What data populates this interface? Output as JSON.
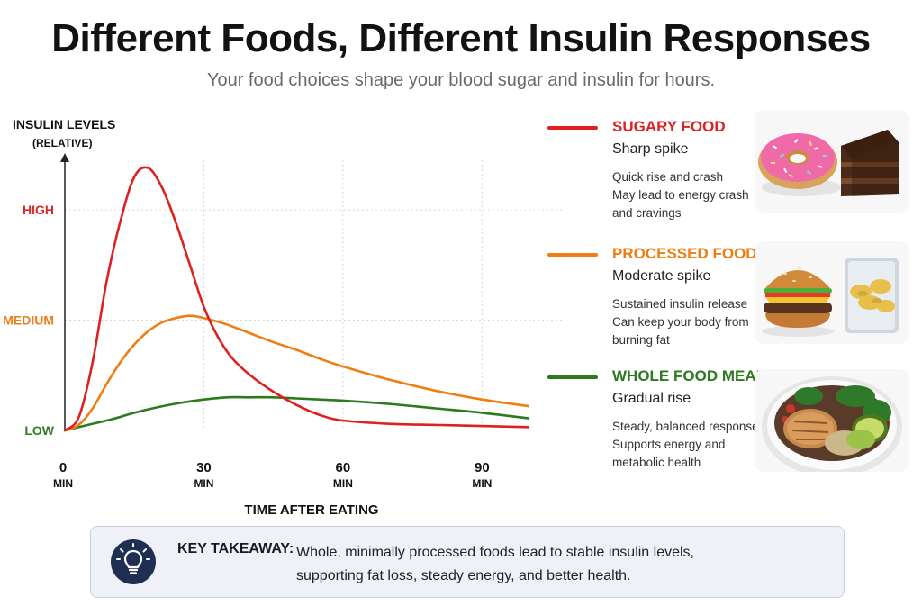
{
  "header": {
    "title": "Different Foods, Different Insulin Responses",
    "subtitle": "Your food choices shape your blood sugar and insulin for hours."
  },
  "chart_data": {
    "type": "line",
    "ylabel_lines": [
      "INSULIN LEVELS",
      "(RELATIVE)"
    ],
    "xlabel": "TIME AFTER EATING",
    "x_ticks": [
      {
        "value": 0,
        "label": "0",
        "unit": "MIN"
      },
      {
        "value": 30,
        "label": "30",
        "unit": "MIN"
      },
      {
        "value": 60,
        "label": "60",
        "unit": "MIN"
      },
      {
        "value": 90,
        "label": "90",
        "unit": "MIN"
      }
    ],
    "y_ticks": [
      {
        "value": 0,
        "label": "LOW",
        "color": "#2f7d1f"
      },
      {
        "value": 1,
        "label": "MEDIUM",
        "color": "#ee7b1a"
      },
      {
        "value": 2,
        "label": "HIGH",
        "color": "#d62a24"
      }
    ],
    "xlim": [
      0,
      108
    ],
    "ylim": [
      0,
      2.45
    ],
    "grid": true,
    "series": [
      {
        "name": "SUGARY FOOD",
        "color": "#dd2020",
        "x": [
          0,
          3,
          6,
          9,
          12,
          15,
          18,
          21,
          24,
          27,
          30,
          33,
          36,
          40,
          45,
          50,
          55,
          60,
          70,
          80,
          90,
          100
        ],
        "y": [
          0,
          0.12,
          0.62,
          1.35,
          1.9,
          2.3,
          2.38,
          2.2,
          1.88,
          1.5,
          1.12,
          0.85,
          0.66,
          0.5,
          0.35,
          0.23,
          0.14,
          0.09,
          0.06,
          0.05,
          0.04,
          0.03
        ]
      },
      {
        "name": "PROCESSED FOOD",
        "color": "#f07d12",
        "x": [
          0,
          3,
          6,
          9,
          12,
          15,
          18,
          21,
          24,
          27,
          30,
          35,
          40,
          45,
          50,
          55,
          60,
          70,
          80,
          90,
          100
        ],
        "y": [
          0,
          0.05,
          0.2,
          0.42,
          0.62,
          0.78,
          0.9,
          0.98,
          1.02,
          1.04,
          1.02,
          0.96,
          0.88,
          0.8,
          0.73,
          0.65,
          0.58,
          0.46,
          0.36,
          0.28,
          0.22
        ]
      },
      {
        "name": "WHOLE FOOD MEAL",
        "color": "#2c7a1e",
        "x": [
          0,
          5,
          10,
          15,
          20,
          25,
          30,
          35,
          40,
          45,
          50,
          55,
          60,
          70,
          80,
          90,
          100
        ],
        "y": [
          0,
          0.05,
          0.1,
          0.16,
          0.21,
          0.25,
          0.28,
          0.3,
          0.3,
          0.3,
          0.29,
          0.28,
          0.27,
          0.24,
          0.2,
          0.16,
          0.11
        ]
      }
    ]
  },
  "legend": [
    {
      "name": "SUGARY FOOD",
      "color": "#dd2020",
      "headline": "Sharp spike",
      "lines": [
        "Quick rise and crash",
        "May lead to energy crash",
        "and cravings"
      ],
      "image": "donut-and-chocolate-cake"
    },
    {
      "name": "PROCESSED FOOD",
      "color": "#f07d12",
      "headline": "Moderate spike",
      "lines": [
        "Sustained insulin release",
        "Can keep your body from",
        "burning fat"
      ],
      "image": "burger-and-chips-bag"
    },
    {
      "name": "WHOLE FOOD MEAL",
      "color": "#2c7a1e",
      "headline": "Gradual rise",
      "lines": [
        "Steady, balanced response",
        "Supports energy and",
        "metabolic health"
      ],
      "image": "salad-bowl-with-chicken-and-avocado"
    }
  ],
  "takeaway": {
    "icon": "lightbulb-icon",
    "label": "KEY TAKEAWAY:",
    "lines": [
      "Whole, minimally processed foods lead to stable insulin levels,",
      "supporting fat loss, steady energy, and better health."
    ]
  }
}
